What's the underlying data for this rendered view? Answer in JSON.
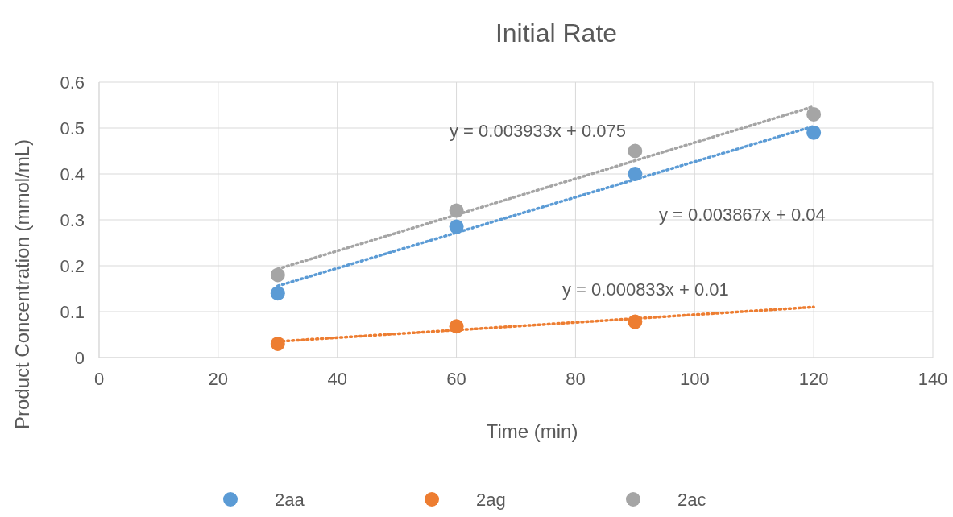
{
  "chart_data": {
    "type": "scatter",
    "title": "Initial Rate",
    "xlabel": "Time (min)",
    "ylabel": "Product Concentration (mmol/mL)",
    "xlim": [
      0,
      140
    ],
    "xticks": [
      0,
      20,
      40,
      60,
      80,
      100,
      120,
      140
    ],
    "ylim": [
      0,
      0.6
    ],
    "yticks": [
      0,
      0.1,
      0.2,
      0.3,
      0.4,
      0.5,
      0.6
    ],
    "grid": true,
    "legend": "bottom",
    "x": [
      30,
      60,
      90,
      120
    ],
    "series": [
      {
        "name": "2aa",
        "color": "#5b9bd5",
        "marker": "circle",
        "values": [
          0.14,
          0.285,
          0.4,
          0.49
        ]
      },
      {
        "name": "2ag",
        "color": "#ed7d31",
        "marker": "circle",
        "x": [
          30,
          60,
          90
        ],
        "values": [
          0.03,
          0.068,
          0.078
        ]
      },
      {
        "name": "2ac",
        "color": "#a5a5a5",
        "marker": "circle",
        "values": [
          0.18,
          0.32,
          0.45,
          0.53
        ]
      },
      {
        "type": "line",
        "color": "#5b9bd5",
        "line_style": "dotted",
        "x": [
          30,
          120
        ],
        "values": [
          0.156,
          0.504
        ]
      },
      {
        "type": "line",
        "color": "#ed7d31",
        "line_style": "dotted",
        "x": [
          30,
          120
        ],
        "values": [
          0.035,
          0.11
        ]
      },
      {
        "type": "line",
        "color": "#a5a5a5",
        "line_style": "dotted",
        "x": [
          30,
          120
        ],
        "values": [
          0.193,
          0.547
        ]
      }
    ],
    "annotations": [
      "y = 0.003933x + 0.075",
      "y = 0.003867x + 0.04",
      "y = 0.000833x + 0.01"
    ]
  }
}
